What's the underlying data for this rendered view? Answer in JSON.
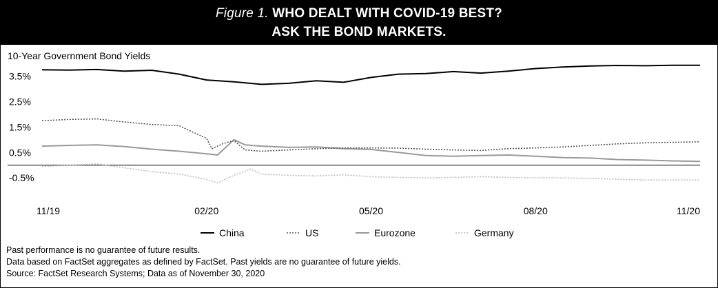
{
  "header": {
    "figure_label": "Figure 1.",
    "title_line1": "WHO DEALT WITH COVID-19 BEST?",
    "title_line2": "ASK THE BOND MARKETS."
  },
  "chart_data": {
    "type": "line",
    "title": "10-Year Government Bond Yields",
    "xlabel": "",
    "ylabel": "",
    "x_ticks": [
      "11/19",
      "02/20",
      "05/20",
      "08/20",
      "11/20"
    ],
    "y_ticks": [
      "3.5%",
      "2.5%",
      "1.5%",
      "0.5%",
      "-0.5%"
    ],
    "y_tick_values": [
      3.5,
      2.5,
      1.5,
      0.5,
      -0.5
    ],
    "ylim": [
      -0.9,
      4.3
    ],
    "xlim": [
      0,
      12
    ],
    "grid": false,
    "zero_line": true,
    "legend_position": "bottom",
    "series": [
      {
        "name": "China",
        "color": "#000000",
        "style": "solid",
        "x": [
          0,
          0.5,
          1,
          1.5,
          2,
          2.5,
          3,
          3.5,
          4,
          4.5,
          5,
          5.5,
          6,
          6.5,
          7,
          7.5,
          8,
          8.5,
          9,
          9.5,
          10,
          10.5,
          11,
          11.5,
          12
        ],
        "y": [
          3.75,
          3.74,
          3.76,
          3.7,
          3.73,
          3.58,
          3.35,
          3.28,
          3.18,
          3.22,
          3.32,
          3.26,
          3.45,
          3.58,
          3.6,
          3.68,
          3.62,
          3.7,
          3.8,
          3.86,
          3.9,
          3.92,
          3.91,
          3.93,
          3.93
        ]
      },
      {
        "name": "US",
        "color": "#555555",
        "style": "dotted",
        "x": [
          0,
          0.5,
          1,
          1.5,
          2,
          2.5,
          3,
          3.1,
          3.3,
          3.5,
          3.7,
          4,
          4.5,
          5,
          5.5,
          6,
          6.5,
          7,
          7.5,
          8,
          8.5,
          9,
          9.5,
          10,
          10.5,
          11,
          11.5,
          12
        ],
        "y": [
          1.75,
          1.8,
          1.82,
          1.7,
          1.6,
          1.55,
          1.05,
          0.65,
          0.85,
          0.97,
          0.6,
          0.55,
          0.6,
          0.65,
          0.68,
          0.68,
          0.67,
          0.63,
          0.6,
          0.58,
          0.65,
          0.68,
          0.72,
          0.78,
          0.84,
          0.88,
          0.9,
          0.92
        ]
      },
      {
        "name": "Eurozone",
        "color": "#999999",
        "style": "solid",
        "x": [
          0,
          0.5,
          1,
          1.5,
          2,
          2.5,
          3,
          3.2,
          3.5,
          3.7,
          4,
          4.5,
          5,
          5.5,
          6,
          6.5,
          7,
          7.5,
          8,
          8.5,
          9,
          9.5,
          10,
          10.5,
          11,
          11.5,
          12
        ],
        "y": [
          0.75,
          0.78,
          0.8,
          0.73,
          0.63,
          0.55,
          0.45,
          0.4,
          1.0,
          0.8,
          0.75,
          0.7,
          0.72,
          0.65,
          0.62,
          0.5,
          0.38,
          0.35,
          0.38,
          0.4,
          0.35,
          0.3,
          0.28,
          0.22,
          0.2,
          0.17,
          0.15
        ]
      },
      {
        "name": "Germany",
        "color": "#bbbbbb",
        "style": "dotted",
        "x": [
          0,
          0.5,
          1,
          1.5,
          2,
          2.5,
          3,
          3.2,
          3.5,
          3.8,
          4,
          4.5,
          5,
          5.5,
          6,
          6.5,
          7,
          7.5,
          8,
          8.5,
          9,
          9.5,
          10,
          10.5,
          11,
          11.5,
          12
        ],
        "y": [
          -0.05,
          0.0,
          0.05,
          -0.1,
          -0.25,
          -0.35,
          -0.55,
          -0.7,
          -0.4,
          -0.15,
          -0.35,
          -0.4,
          -0.42,
          -0.38,
          -0.45,
          -0.48,
          -0.5,
          -0.48,
          -0.45,
          -0.48,
          -0.5,
          -0.5,
          -0.52,
          -0.55,
          -0.58,
          -0.58,
          -0.58
        ]
      }
    ]
  },
  "notes": {
    "line1": "Past performance is no guarantee of future results.",
    "line2": "Data based on FactSet aggregates as defined by FactSet. Past yields are no guarantee of future yields.",
    "line3": "Source: FactSet Research Systems; Data as of November 30, 2020"
  }
}
